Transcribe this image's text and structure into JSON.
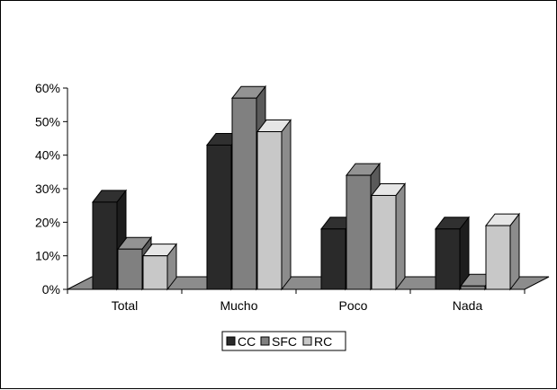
{
  "chart_data": {
    "type": "bar",
    "style": "3d-clustered-column",
    "categories": [
      "Total",
      "Mucho",
      "Poco",
      "Nada"
    ],
    "series": [
      {
        "name": "CC",
        "values": [
          26,
          43,
          18,
          18
        ],
        "color": "#2a2a2a"
      },
      {
        "name": "SFC",
        "values": [
          12,
          57,
          34,
          1
        ],
        "color": "#808080"
      },
      {
        "name": "RC",
        "values": [
          10,
          47,
          28,
          19
        ],
        "color": "#c8c8c8"
      }
    ],
    "y_ticks": [
      "0%",
      "10%",
      "20%",
      "30%",
      "40%",
      "50%",
      "60%"
    ],
    "ylim": [
      0,
      60
    ],
    "floor_color": "#8c8c8c",
    "grid": false,
    "legend_position": "bottom-center"
  }
}
